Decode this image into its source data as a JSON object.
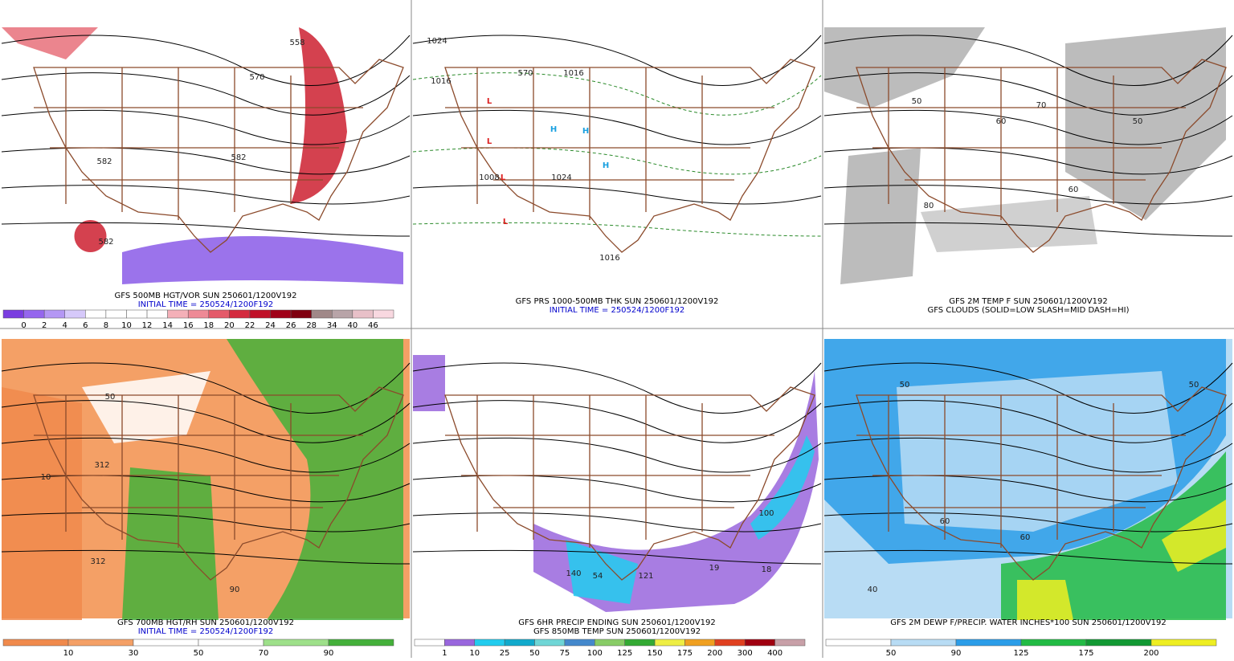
{
  "panels": [
    {
      "captions": [
        {
          "text": "GFS 500MB HGT/VOR SUN 250601/1200V192",
          "color": "#000000"
        },
        {
          "text": "INITIAL TIME = 250524/1200F192",
          "color": "#0000cc"
        }
      ],
      "colorbar": {
        "colors": [
          "#7a3de0",
          "#9566ee",
          "#b497f4",
          "#d6c9fa",
          "#ffffff",
          "#ffffff",
          "#ffffff",
          "#ffffff",
          "#f4b0b8",
          "#ee8a96",
          "#e45a6a",
          "#d42a3e",
          "#c01028",
          "#a00018",
          "#800010",
          "#a08888",
          "#b8a4a8",
          "#e8c0c8",
          "#f8d8e0"
        ],
        "labels": [
          "0",
          "2",
          "4",
          "6",
          "8",
          "10",
          "12",
          "14",
          "16",
          "18",
          "20",
          "22",
          "24",
          "26",
          "28",
          "34",
          "40",
          "46"
        ]
      },
      "map_labels": [
        "570",
        "582",
        "582",
        "582",
        "558"
      ]
    },
    {
      "captions": [
        {
          "text": "GFS PRS 1000-500MB THK SUN 250601/1200V192",
          "color": "#000000"
        },
        {
          "text": "INITIAL TIME = 250524/1200F192",
          "color": "#0000cc"
        }
      ],
      "colorbar": null,
      "map_labels": [
        "1024",
        "1016",
        "1016",
        "1008",
        "1016",
        "1024",
        "570",
        "H",
        "H",
        "H",
        "L",
        "L",
        "L",
        "L"
      ]
    },
    {
      "captions": [
        {
          "text": "GFS 2M TEMP F SUN 250601/1200V192",
          "color": "#000000"
        },
        {
          "text": "GFS CLOUDS (SOLID=LOW SLASH=MID DASH=HI)",
          "color": "#000000"
        }
      ],
      "colorbar": null,
      "map_labels": [
        "50",
        "60",
        "60",
        "50",
        "70",
        "80"
      ]
    },
    {
      "captions": [
        {
          "text": "GFS 700MB HGT/RH SUN 250601/1200V192",
          "color": "#000000"
        },
        {
          "text": "INITIAL TIME = 250524/1200F192",
          "color": "#0000cc"
        }
      ],
      "colorbar": {
        "colors": [
          "#f08a4c",
          "#f4a066",
          "#ffffff",
          "#ffffff",
          "#9ee08a",
          "#44b03a"
        ],
        "labels": [
          "10",
          "30",
          "50",
          "70",
          "90"
        ]
      },
      "map_labels": [
        "312",
        "312",
        "50",
        "10",
        "90"
      ]
    },
    {
      "captions": [
        {
          "text": "GFS 6HR PRECIP ENDING SUN 250601/1200V192",
          "color": "#000000"
        },
        {
          "text": "GFS 850MB TEMP SUN 250601/1200V192",
          "color": "#000000"
        }
      ],
      "colorbar": {
        "colors": [
          "#ffffff",
          "#9966dd",
          "#22ccee",
          "#11aacc",
          "#6fd6d6",
          "#4488cc",
          "#88cc66",
          "#33aa33",
          "#eeee44",
          "#f0a020",
          "#e04020",
          "#a00010",
          "#c8a0a8"
        ],
        "labels": [
          "1",
          "10",
          "25",
          "50",
          "75",
          "100",
          "125",
          "150",
          "175",
          "200",
          "300",
          "400"
        ]
      },
      "map_labels": [
        "100",
        "140",
        "54",
        "121",
        "19",
        "18"
      ]
    },
    {
      "captions": [
        {
          "text": "GFS 2M DEWP F/PRECIP. WATER INCHES*100 SUN 250601/1200V192",
          "color": "#000000"
        }
      ],
      "colorbar": {
        "colors": [
          "#ffffff",
          "#b8dcf4",
          "#2b9de8",
          "#22bb44",
          "#119933",
          "#eeee22"
        ],
        "labels": [
          "50",
          "90",
          "125",
          "175",
          "200"
        ]
      },
      "map_labels": [
        "40",
        "50",
        "60",
        "60",
        "50"
      ]
    }
  ]
}
